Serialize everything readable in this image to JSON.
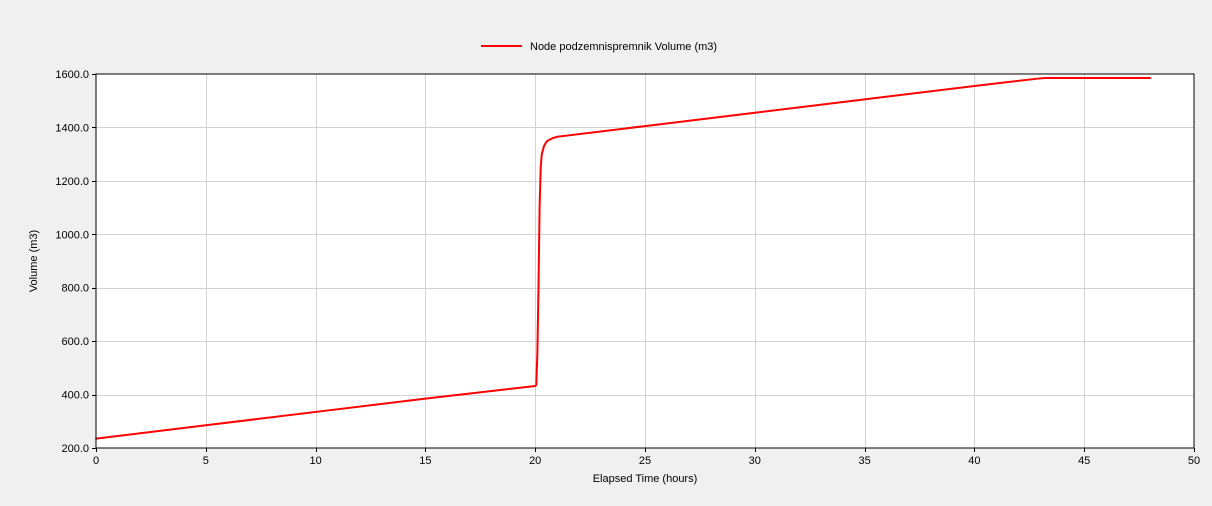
{
  "chart_data": {
    "type": "line",
    "title": "",
    "xlabel": "Elapsed Time (hours)",
    "ylabel": "Volume (m3)",
    "xlim": [
      0,
      50
    ],
    "ylim": [
      200,
      1600
    ],
    "x_ticks": [
      0,
      5,
      10,
      15,
      20,
      25,
      30,
      35,
      40,
      45,
      50
    ],
    "y_ticks": [
      200,
      400,
      600,
      800,
      1000,
      1200,
      1400,
      1600
    ],
    "x_tick_labels": [
      "0",
      "5",
      "10",
      "15",
      "20",
      "25",
      "30",
      "35",
      "40",
      "45",
      "50"
    ],
    "y_tick_labels": [
      "200.0",
      "400.0",
      "600.0",
      "800.0",
      "1000.0",
      "1200.0",
      "1400.0",
      "1600.0"
    ],
    "grid": true,
    "legend_position": "top-center",
    "series": [
      {
        "name": "Node podzemnispremnik Volume (m3)",
        "color": "#ff0000",
        "x": [
          0,
          5,
          10,
          15,
          20,
          20.05,
          20.1,
          20.15,
          20.2,
          20.25,
          20.3,
          20.4,
          20.5,
          20.6,
          20.8,
          21,
          21.5,
          25,
          30,
          35,
          40,
          42.8,
          43.2,
          48
        ],
        "y": [
          235,
          285,
          335,
          385,
          432,
          436,
          560,
          800,
          1100,
          1250,
          1300,
          1330,
          1345,
          1352,
          1360,
          1365,
          1370,
          1405,
          1455,
          1505,
          1555,
          1582,
          1585,
          1585
        ]
      }
    ]
  }
}
